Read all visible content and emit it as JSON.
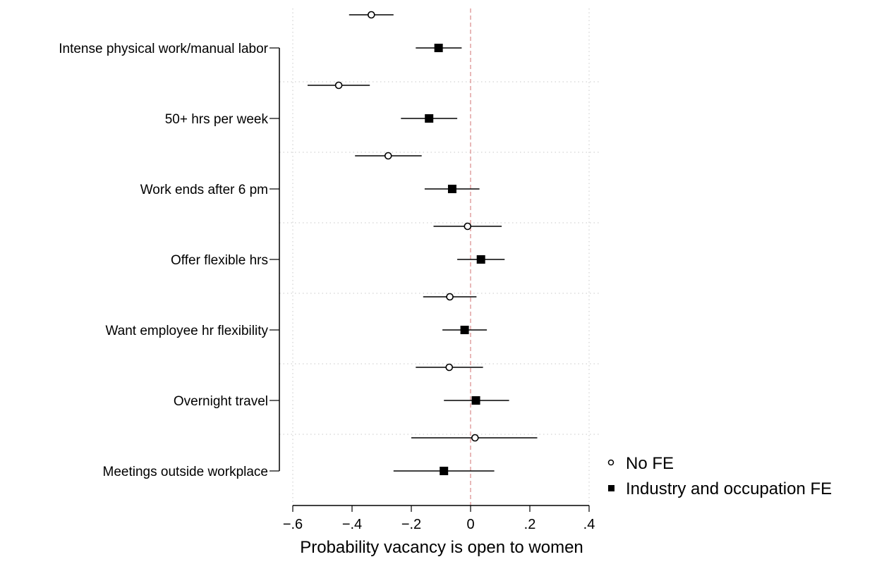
{
  "chart_data": {
    "type": "scatter",
    "subtype": "coefficient-plot-with-confidence-intervals",
    "orientation": "horizontal",
    "title": "",
    "xlabel": "Probability vacancy is open to women",
    "ylabel": "",
    "xlim": [
      -0.6,
      0.4
    ],
    "xticks": [
      -0.6,
      -0.4,
      -0.2,
      0,
      0.2,
      0.4
    ],
    "xtick_labels": [
      "−.6",
      "−.4",
      "−.2",
      "0",
      ".2",
      ".4"
    ],
    "reference_line": {
      "x": 0,
      "style": "dashed",
      "color": "#d98a8a"
    },
    "grid": "dotted horizontal separators between categories",
    "legend_position": "bottom-right",
    "categories": [
      "Intense physical work/manual labor",
      "50+ hrs per week",
      "Work ends after 6 pm",
      "Offer flexible hrs",
      "Want employee hr flexibility",
      "Overnight travel",
      "Meetings outside workplace"
    ],
    "series": [
      {
        "name": "No FE",
        "marker": "hollow-circle",
        "estimates": [
          -0.335,
          -0.445,
          -0.278,
          -0.01,
          -0.07,
          -0.072,
          0.015
        ],
        "ci_low": [
          -0.41,
          -0.55,
          -0.39,
          -0.125,
          -0.16,
          -0.185,
          -0.2
        ],
        "ci_high": [
          -0.26,
          -0.34,
          -0.165,
          0.105,
          0.02,
          0.042,
          0.225
        ]
      },
      {
        "name": "Industry and occupation FE",
        "marker": "filled-square",
        "estimates": [
          -0.108,
          -0.14,
          -0.062,
          0.035,
          -0.02,
          0.018,
          -0.09
        ],
        "ci_low": [
          -0.185,
          -0.235,
          -0.155,
          -0.045,
          -0.095,
          -0.09,
          -0.26
        ],
        "ci_high": [
          -0.03,
          -0.045,
          0.03,
          0.115,
          0.055,
          0.13,
          0.08
        ]
      }
    ],
    "colors": {
      "markers": "#000000",
      "ci_lines": "#000000",
      "reference_line": "#d98a8a",
      "grid": "#c8c8c8"
    }
  }
}
